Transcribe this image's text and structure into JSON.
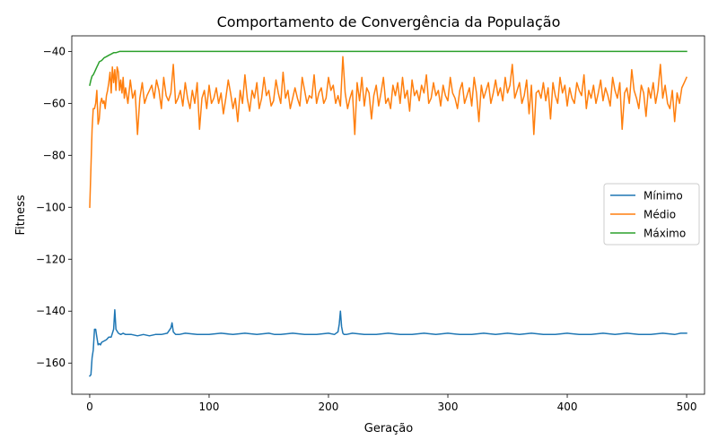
{
  "chart_data": {
    "type": "line",
    "title": "Comportamento de Convergência da População",
    "xlabel": "Geração",
    "ylabel": "Fitness",
    "xlim": [
      -15,
      515
    ],
    "ylim": [
      -172,
      -34
    ],
    "xticks": [
      0,
      100,
      200,
      300,
      400,
      500
    ],
    "yticks": [
      -160,
      -140,
      -120,
      -100,
      -80,
      -60,
      -40
    ],
    "legend_position": "center-right",
    "grid": false,
    "series": [
      {
        "name": "Mínimo",
        "color": "#1f77b4",
        "x": [
          0,
          1,
          2,
          3,
          4,
          5,
          6,
          7,
          8,
          9,
          10,
          12,
          14,
          16,
          18,
          20,
          21,
          22,
          24,
          26,
          28,
          30,
          35,
          40,
          45,
          50,
          55,
          60,
          65,
          68,
          69,
          70,
          71,
          72,
          75,
          80,
          90,
          100,
          110,
          120,
          130,
          140,
          150,
          155,
          160,
          170,
          180,
          190,
          200,
          205,
          208,
          209,
          210,
          211,
          212,
          213,
          215,
          220,
          230,
          240,
          250,
          260,
          270,
          280,
          290,
          300,
          310,
          320,
          330,
          340,
          350,
          360,
          370,
          380,
          390,
          400,
          410,
          420,
          430,
          440,
          450,
          460,
          470,
          480,
          490,
          495,
          500
        ],
        "y": [
          -165,
          -164.5,
          -158,
          -155,
          -147,
          -147,
          -150,
          -153,
          -152.5,
          -153,
          -152,
          -151.5,
          -151,
          -150,
          -150,
          -147,
          -139.5,
          -147,
          -148.5,
          -149,
          -148.5,
          -149,
          -149,
          -149.5,
          -149,
          -149.5,
          -149,
          -149,
          -148.5,
          -146.5,
          -144.5,
          -148,
          -148.5,
          -149,
          -149,
          -148.5,
          -149,
          -149,
          -148.5,
          -149,
          -148.5,
          -149,
          -148.5,
          -149,
          -149,
          -148.5,
          -149,
          -149,
          -148.5,
          -149,
          -148,
          -145,
          -140,
          -146,
          -148.5,
          -149,
          -149,
          -148.5,
          -149,
          -149,
          -148.5,
          -149,
          -149,
          -148.5,
          -149,
          -148.5,
          -149,
          -149,
          -148.5,
          -149,
          -148.5,
          -149,
          -148.5,
          -149,
          -149,
          -148.5,
          -149,
          -149,
          -148.5,
          -149,
          -148.5,
          -149,
          -149,
          -148.5,
          -149,
          -148.5,
          -148.5
        ]
      },
      {
        "name": "Médio",
        "color": "#ff7f0e",
        "x": [
          0,
          1,
          2,
          3,
          4,
          5,
          6,
          7,
          8,
          9,
          10,
          11,
          12,
          13,
          14,
          15,
          16,
          17,
          18,
          19,
          20,
          21,
          22,
          23,
          24,
          25,
          26,
          27,
          28,
          29,
          30,
          32,
          34,
          36,
          38,
          40,
          41,
          42,
          44,
          46,
          48,
          50,
          52,
          54,
          56,
          58,
          60,
          62,
          64,
          66,
          68,
          70,
          72,
          74,
          76,
          78,
          80,
          82,
          84,
          86,
          88,
          90,
          92,
          94,
          96,
          98,
          100,
          102,
          104,
          106,
          108,
          110,
          112,
          114,
          116,
          118,
          120,
          122,
          124,
          126,
          128,
          130,
          132,
          134,
          136,
          138,
          140,
          142,
          144,
          146,
          148,
          150,
          152,
          154,
          156,
          158,
          160,
          162,
          164,
          166,
          168,
          170,
          172,
          174,
          176,
          178,
          180,
          182,
          184,
          186,
          188,
          190,
          192,
          194,
          196,
          198,
          200,
          202,
          204,
          206,
          208,
          210,
          212,
          214,
          216,
          218,
          220,
          222,
          224,
          226,
          228,
          230,
          232,
          234,
          236,
          238,
          240,
          242,
          244,
          246,
          248,
          250,
          252,
          254,
          256,
          258,
          260,
          262,
          264,
          266,
          268,
          270,
          272,
          274,
          276,
          278,
          280,
          282,
          284,
          286,
          288,
          290,
          292,
          294,
          296,
          298,
          300,
          302,
          304,
          306,
          308,
          310,
          312,
          314,
          316,
          318,
          320,
          322,
          324,
          326,
          328,
          330,
          332,
          334,
          336,
          338,
          340,
          342,
          344,
          346,
          348,
          350,
          352,
          354,
          356,
          358,
          360,
          362,
          364,
          366,
          368,
          370,
          372,
          374,
          376,
          378,
          380,
          382,
          384,
          386,
          388,
          390,
          392,
          394,
          396,
          398,
          400,
          402,
          404,
          406,
          408,
          410,
          412,
          414,
          416,
          418,
          420,
          422,
          424,
          426,
          428,
          430,
          432,
          434,
          436,
          438,
          440,
          442,
          444,
          446,
          448,
          450,
          452,
          454,
          456,
          458,
          460,
          462,
          464,
          466,
          468,
          470,
          472,
          474,
          476,
          478,
          480,
          482,
          484,
          486,
          488,
          490,
          492,
          494,
          496,
          498,
          500
        ],
        "y": [
          -100,
          -85,
          -70,
          -62,
          -62,
          -60,
          -55,
          -68,
          -66,
          -60,
          -58,
          -60,
          -59,
          -62,
          -57,
          -55,
          -52,
          -48,
          -56,
          -46,
          -52,
          -47,
          -55,
          -46,
          -48,
          -55,
          -51,
          -56,
          -50,
          -58,
          -54,
          -60,
          -51,
          -58,
          -55,
          -72,
          -65,
          -58,
          -52,
          -60,
          -57,
          -55,
          -53,
          -58,
          -51,
          -55,
          -62,
          -50,
          -57,
          -59,
          -56,
          -45,
          -60,
          -58,
          -55,
          -61,
          -52,
          -58,
          -62,
          -55,
          -60,
          -52,
          -70,
          -58,
          -55,
          -62,
          -53,
          -60,
          -58,
          -54,
          -60,
          -56,
          -64,
          -58,
          -51,
          -56,
          -62,
          -58,
          -67,
          -55,
          -60,
          -49,
          -58,
          -63,
          -55,
          -58,
          -52,
          -62,
          -58,
          -50,
          -57,
          -55,
          -61,
          -59,
          -51,
          -56,
          -60,
          -48,
          -58,
          -55,
          -62,
          -58,
          -54,
          -58,
          -61,
          -50,
          -55,
          -60,
          -57,
          -58,
          -49,
          -60,
          -56,
          -54,
          -60,
          -58,
          -50,
          -55,
          -53,
          -60,
          -57,
          -61,
          -42,
          -56,
          -62,
          -58,
          -55,
          -72,
          -52,
          -59,
          -50,
          -61,
          -54,
          -56,
          -66,
          -57,
          -53,
          -61,
          -56,
          -50,
          -60,
          -58,
          -62,
          -53,
          -57,
          -52,
          -60,
          -50,
          -58,
          -55,
          -63,
          -51,
          -57,
          -55,
          -59,
          -53,
          -56,
          -49,
          -60,
          -58,
          -52,
          -57,
          -55,
          -61,
          -53,
          -57,
          -59,
          -50,
          -56,
          -58,
          -62,
          -55,
          -52,
          -60,
          -57,
          -54,
          -61,
          -50,
          -56,
          -67,
          -53,
          -58,
          -55,
          -52,
          -60,
          -56,
          -51,
          -57,
          -54,
          -59,
          -50,
          -56,
          -53,
          -45,
          -58,
          -55,
          -52,
          -60,
          -57,
          -51,
          -64,
          -53,
          -72,
          -56,
          -55,
          -58,
          -52,
          -59,
          -54,
          -66,
          -52,
          -57,
          -60,
          -50,
          -56,
          -53,
          -61,
          -54,
          -58,
          -60,
          -52,
          -55,
          -57,
          -49,
          -62,
          -55,
          -58,
          -53,
          -60,
          -56,
          -51,
          -59,
          -54,
          -57,
          -61,
          -50,
          -55,
          -58,
          -52,
          -70,
          -56,
          -54,
          -60,
          -47,
          -55,
          -58,
          -62,
          -53,
          -56,
          -65,
          -54,
          -58,
          -52,
          -60,
          -55,
          -45,
          -58,
          -53,
          -60,
          -62,
          -55,
          -67,
          -56,
          -60,
          -54,
          -52,
          -50
        ]
      },
      {
        "name": "Máximo",
        "color": "#2ca02c",
        "x": [
          0,
          1,
          2,
          3,
          4,
          5,
          6,
          7,
          8,
          10,
          12,
          14,
          16,
          18,
          20,
          22,
          25,
          30,
          100,
          200,
          300,
          400,
          500
        ],
        "y": [
          -53,
          -51,
          -49.5,
          -49,
          -48,
          -47,
          -46,
          -45,
          -44,
          -43.5,
          -42.5,
          -42,
          -41.5,
          -41,
          -40.5,
          -40.5,
          -40,
          -40,
          -40,
          -40,
          -40,
          -40,
          -40
        ]
      }
    ]
  }
}
